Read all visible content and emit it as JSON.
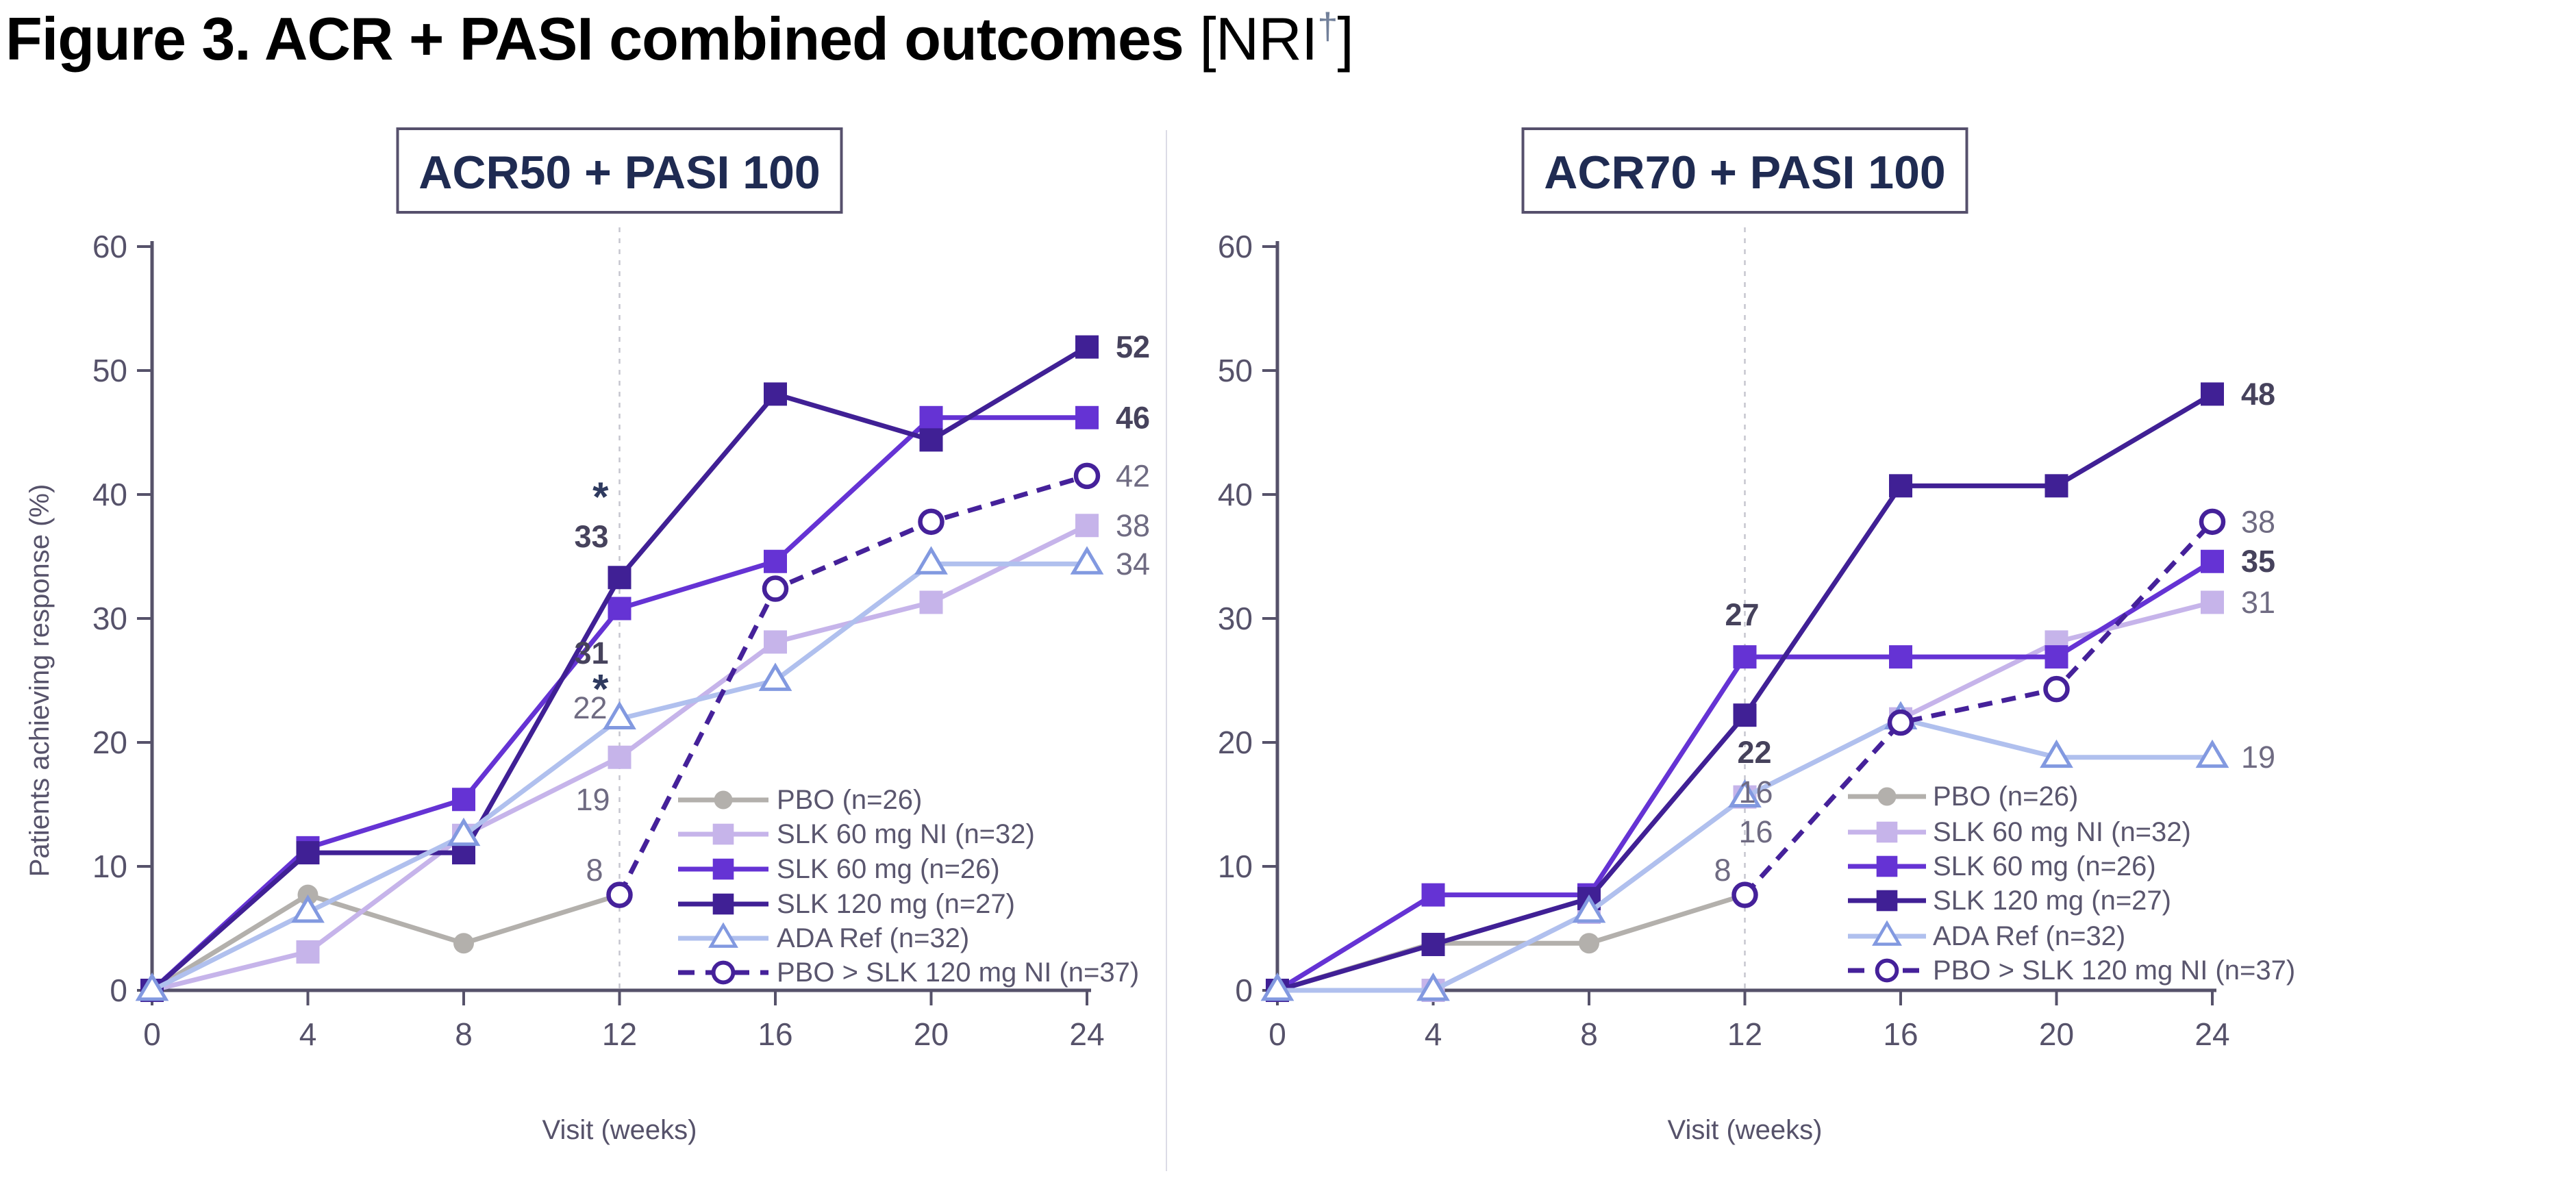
{
  "title": {
    "text_bold": "Figure 3. ACR + PASI combined outcomes",
    "text_regular_open": " [NRI",
    "dagger": "†",
    "text_regular_close": "]"
  },
  "axes": {
    "y_label": "Patients achieving response (%)",
    "x_label": "Visit (weeks)",
    "y_ticks": [
      0,
      10,
      20,
      30,
      40,
      50,
      60
    ],
    "x_ticks": [
      0,
      4,
      8,
      12,
      16,
      20,
      24
    ],
    "y_max": 60
  },
  "colors": {
    "axis": "#56526a",
    "tick_text": "#56526a",
    "legend_text": "#5a566e",
    "box_title_text": "#1f2b52",
    "box_border": "#56506c",
    "annotation_bold": "#46425c",
    "annotation_gray": "#6f6b82",
    "asterisk": "#2e3a5f",
    "dashed_guide": "#c6c6cf",
    "panel_divider": "#dcdce6"
  },
  "series_styles": {
    "pbo": {
      "color": "#b3b0ac",
      "marker": "circle-icon",
      "dashed": false
    },
    "slk60ni": {
      "color": "#c6b4ea",
      "marker": "square-icon",
      "dashed": false
    },
    "slk60": {
      "color": "#6533d4",
      "marker": "square-icon",
      "dashed": false
    },
    "slk120": {
      "color": "#402095",
      "marker": "square-icon",
      "dashed": false
    },
    "ada": {
      "color": "#b0c0ee",
      "marker": "triangle-icon",
      "marker_stroke": "#8299e0",
      "dashed": false
    },
    "pbo_slk120ni": {
      "color": "#45219a",
      "marker": "open-circle-icon",
      "dashed": true
    }
  },
  "legend": [
    {
      "series": "pbo",
      "label": "PBO (n=26)"
    },
    {
      "series": "slk60ni",
      "label": "SLK 60 mg NI (n=32)"
    },
    {
      "series": "slk60",
      "label": "SLK 60 mg (n=26)"
    },
    {
      "series": "slk120",
      "label": "SLK 120 mg (n=27)"
    },
    {
      "series": "ada",
      "label": "ADA Ref (n=32)"
    },
    {
      "series": "pbo_slk120ni",
      "label": "PBO > SLK 120 mg NI (n=37)"
    }
  ],
  "chart_data": [
    {
      "type": "line",
      "title": "ACR50 + PASI 100",
      "xlabel": "Visit (weeks)",
      "ylabel": "Patients achieving response (%)",
      "x": [
        0,
        4,
        8,
        12,
        16,
        20,
        24
      ],
      "ylim": [
        0,
        60
      ],
      "guide_week": 12,
      "series": [
        {
          "key": "pbo",
          "name": "PBO (n=26)",
          "values": [
            0,
            7.7,
            3.8,
            7.7,
            null,
            null,
            null
          ]
        },
        {
          "key": "slk60ni",
          "name": "SLK 60 mg NI (n=32)",
          "values": [
            0,
            3.1,
            12.5,
            18.8,
            28.1,
            31.3,
            37.5
          ]
        },
        {
          "key": "slk60",
          "name": "SLK 60 mg (n=26)",
          "values": [
            0,
            11.5,
            15.4,
            30.8,
            34.6,
            46.2,
            46.2
          ]
        },
        {
          "key": "slk120",
          "name": "SLK 120 mg (n=27)",
          "values": [
            0,
            11.1,
            11.1,
            33.3,
            48.1,
            44.4,
            51.9
          ]
        },
        {
          "key": "ada",
          "name": "ADA Ref (n=32)",
          "values": [
            0,
            6.3,
            12.5,
            21.9,
            25.0,
            34.4,
            34.4
          ]
        },
        {
          "key": "pbo_slk120ni",
          "name": "PBO > SLK 120 mg NI (n=37)",
          "values": [
            null,
            null,
            null,
            7.7,
            32.4,
            37.8,
            41.5
          ]
        }
      ],
      "annotations": [
        {
          "text": "*",
          "week": 12,
          "dx": -16,
          "anchor": "end",
          "value": 39.8,
          "style": "asterisk"
        },
        {
          "text": "33",
          "week": 12,
          "dx": -16,
          "anchor": "end",
          "value": 36.6,
          "style": "bold"
        },
        {
          "text": "31",
          "week": 12,
          "dx": -16,
          "anchor": "end",
          "value": 27.2,
          "style": "bold"
        },
        {
          "text": "*",
          "week": 12,
          "dx": -16,
          "anchor": "end",
          "value": 24.3,
          "style": "asterisk"
        },
        {
          "text": "22",
          "week": 12,
          "dx": -18,
          "anchor": "end",
          "value": 22.8,
          "style": "gray"
        },
        {
          "text": "19",
          "week": 12,
          "dx": -14,
          "anchor": "end",
          "value": 15.4,
          "style": "gray"
        },
        {
          "text": "8",
          "week": 12,
          "dx": -24,
          "anchor": "end",
          "value": 9.7,
          "style": "gray"
        },
        {
          "text": "52",
          "week": 24,
          "dx": 42,
          "anchor": "start",
          "value": 51.9,
          "style": "bold"
        },
        {
          "text": "46",
          "week": 24,
          "dx": 42,
          "anchor": "start",
          "value": 46.2,
          "style": "bold"
        },
        {
          "text": "42",
          "week": 24,
          "dx": 42,
          "anchor": "start",
          "value": 41.5,
          "style": "gray"
        },
        {
          "text": "38",
          "week": 24,
          "dx": 42,
          "anchor": "start",
          "value": 37.5,
          "style": "gray"
        },
        {
          "text": "34",
          "week": 24,
          "dx": 42,
          "anchor": "start",
          "value": 34.4,
          "style": "gray"
        }
      ]
    },
    {
      "type": "line",
      "title": "ACR70 + PASI 100",
      "xlabel": "Visit (weeks)",
      "ylabel": "Patients achieving response (%)",
      "x": [
        0,
        4,
        8,
        12,
        16,
        20,
        24
      ],
      "ylim": [
        0,
        60
      ],
      "guide_week": 12,
      "series": [
        {
          "key": "pbo",
          "name": "PBO (n=26)",
          "values": [
            0,
            3.8,
            3.8,
            7.7,
            null,
            null,
            null
          ]
        },
        {
          "key": "slk60ni",
          "name": "SLK 60 mg NI (n=32)",
          "values": [
            0,
            0,
            6.3,
            15.6,
            21.9,
            28.1,
            31.3
          ]
        },
        {
          "key": "slk60",
          "name": "SLK 60 mg (n=26)",
          "values": [
            0,
            7.7,
            7.7,
            26.9,
            26.9,
            26.9,
            34.6
          ]
        },
        {
          "key": "slk120",
          "name": "SLK 120 mg (n=27)",
          "values": [
            0,
            3.7,
            7.4,
            22.2,
            40.7,
            40.7,
            48.1
          ]
        },
        {
          "key": "ada",
          "name": "ADA Ref (n=32)",
          "values": [
            0,
            0,
            6.3,
            15.6,
            21.9,
            18.8,
            18.8
          ]
        },
        {
          "key": "pbo_slk120ni",
          "name": "PBO > SLK 120 mg NI (n=37)",
          "values": [
            null,
            null,
            null,
            7.7,
            21.6,
            24.3,
            37.8
          ]
        }
      ],
      "annotations": [
        {
          "text": "27",
          "week": 12,
          "dx": -4,
          "anchor": "middle",
          "value": 30.3,
          "style": "bold"
        },
        {
          "text": "22",
          "week": 12,
          "dx": 14,
          "anchor": "middle",
          "value": 19.2,
          "style": "bold"
        },
        {
          "text": "16",
          "week": 12,
          "dx": 16,
          "anchor": "middle",
          "value": 16.0,
          "style": "gray"
        },
        {
          "text": "16",
          "week": 12,
          "dx": 16,
          "anchor": "middle",
          "value": 12.8,
          "style": "gray"
        },
        {
          "text": "8",
          "week": 12,
          "dx": -20,
          "anchor": "end",
          "value": 9.7,
          "style": "gray"
        },
        {
          "text": "48",
          "week": 24,
          "dx": 42,
          "anchor": "start",
          "value": 48.1,
          "style": "bold"
        },
        {
          "text": "38",
          "week": 24,
          "dx": 42,
          "anchor": "start",
          "value": 37.8,
          "style": "gray"
        },
        {
          "text": "35",
          "week": 24,
          "dx": 42,
          "anchor": "start",
          "value": 34.6,
          "style": "bold"
        },
        {
          "text": "31",
          "week": 24,
          "dx": 42,
          "anchor": "start",
          "value": 31.3,
          "style": "gray"
        },
        {
          "text": "19",
          "week": 24,
          "dx": 42,
          "anchor": "start",
          "value": 18.8,
          "style": "gray"
        }
      ]
    }
  ]
}
